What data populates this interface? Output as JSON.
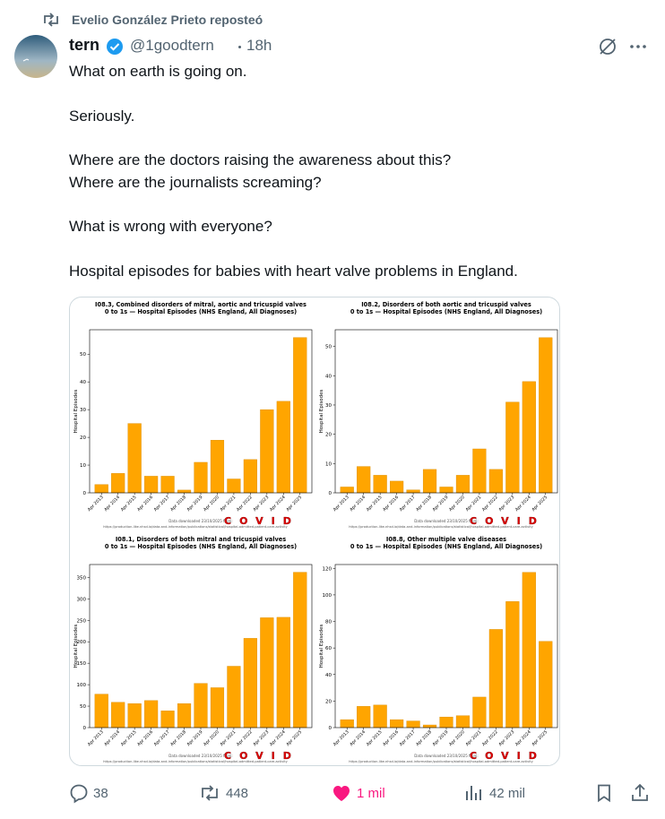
{
  "repost": {
    "text": "Evelio González Prieto reposteó"
  },
  "author": {
    "name": "tern",
    "handle": "@1goodtern",
    "time": "18h"
  },
  "text": {
    "paragraphs": [
      [
        "What on earth is going on."
      ],
      [
        "Seriously."
      ],
      [
        "Where are the doctors raising the awareness about this?",
        "Where are the journalists screaming?"
      ],
      [
        "What is wrong with everyone?"
      ],
      [
        "Hospital episodes for babies with heart valve problems in England."
      ]
    ]
  },
  "chart_data": [
    {
      "type": "bar",
      "title": "I08.3,  Combined disorders of mitral, aortic and tricuspid valves",
      "subtitle": "0 to 1s — Hospital Episodes (NHS England, All Diagnoses)",
      "ylabel": "Hospital Episodes",
      "categories": [
        "Apr 2013",
        "Apr 2014",
        "Apr 2015",
        "Apr 2016",
        "Apr 2017",
        "Apr 2018",
        "Apr 2019",
        "Apr 2020",
        "Apr 2021",
        "Apr 2022",
        "Apr 2023",
        "Apr 2024",
        "Apr 2025"
      ],
      "values": [
        3,
        7,
        25,
        6,
        6,
        1,
        11,
        19,
        5,
        12,
        30,
        33,
        56
      ],
      "color": "#ffa500",
      "ylim": [
        0,
        58.8
      ],
      "yticks": [
        0,
        10,
        20,
        30,
        40,
        50
      ],
      "annotation": "COVID",
      "source": "Data downloaded 23/10/2025 from:",
      "url": "https://production-like.nhsd.io/data-and-information/publications/statistical/hospital-admitted-patient-care-activity"
    },
    {
      "type": "bar",
      "title": "I08.2,  Disorders of both aortic and tricuspid valves",
      "subtitle": "0 to 1s — Hospital Episodes (NHS England, All Diagnoses)",
      "ylabel": "Hospital Episodes",
      "categories": [
        "Apr 2013",
        "Apr 2014",
        "Apr 2015",
        "Apr 2016",
        "Apr 2017",
        "Apr 2018",
        "Apr 2019",
        "Apr 2020",
        "Apr 2021",
        "Apr 2022",
        "Apr 2023",
        "Apr 2024",
        "Apr 2025"
      ],
      "values": [
        2,
        9,
        6,
        4,
        1,
        8,
        2,
        6,
        15,
        8,
        31,
        38,
        53
      ],
      "color": "#ffa500",
      "ylim": [
        0,
        55.7
      ],
      "yticks": [
        0,
        10,
        20,
        30,
        40,
        50
      ],
      "annotation": "COVID",
      "source": "Data downloaded 23/10/2025 from:",
      "url": "https://production-like.nhsd.io/data-and-information/publications/statistical/hospital-admitted-patient-care-activity"
    },
    {
      "type": "bar",
      "title": "I08.1,  Disorders of both mitral and tricuspid valves",
      "subtitle": "0 to 1s — Hospital Episodes (NHS England, All Diagnoses)",
      "ylabel": "Hospital Episodes",
      "categories": [
        "Apr 2013",
        "Apr 2014",
        "Apr 2015",
        "Apr 2016",
        "Apr 2017",
        "Apr 2018",
        "Apr 2019",
        "Apr 2020",
        "Apr 2021",
        "Apr 2022",
        "Apr 2023",
        "Apr 2024",
        "Apr 2025"
      ],
      "values": [
        78,
        59,
        56,
        63,
        39,
        56,
        103,
        93,
        143,
        208,
        256,
        257,
        362
      ],
      "color": "#ffa500",
      "ylim": [
        0,
        380
      ],
      "yticks": [
        0,
        50,
        100,
        150,
        200,
        250,
        300,
        350
      ],
      "annotation": "COVID",
      "source": "Data downloaded 23/10/2025 from:",
      "url": "https://production-like.nhsd.io/data-and-information/publications/statistical/hospital-admitted-patient-care-activity"
    },
    {
      "type": "bar",
      "title": "I08.8,  Other multiple valve diseases",
      "subtitle": "0 to 1s — Hospital Episodes (NHS England, All Diagnoses)",
      "ylabel": "Hospital Episodes",
      "categories": [
        "Apr 2013",
        "Apr 2014",
        "Apr 2015",
        "Apr 2016",
        "Apr 2017",
        "Apr 2018",
        "Apr 2019",
        "Apr 2020",
        "Apr 2021",
        "Apr 2022",
        "Apr 2023",
        "Apr 2024",
        "Apr 2025"
      ],
      "values": [
        6,
        16,
        17,
        6,
        5,
        2,
        8,
        9,
        23,
        74,
        95,
        117,
        65
      ],
      "color": "#ffa500",
      "ylim": [
        0,
        122.9
      ],
      "yticks": [
        0,
        20,
        40,
        60,
        80,
        100,
        120
      ],
      "annotation": "COVID",
      "source": "Data downloaded 23/10/2025 from:",
      "url": "https://production-like.nhsd.io/data-and-information/publications/statistical/hospital-admitted-patient-care-activity"
    }
  ],
  "actions": {
    "replies": "38",
    "reposts": "448",
    "likes": "1 mil",
    "views": "42 mil"
  }
}
